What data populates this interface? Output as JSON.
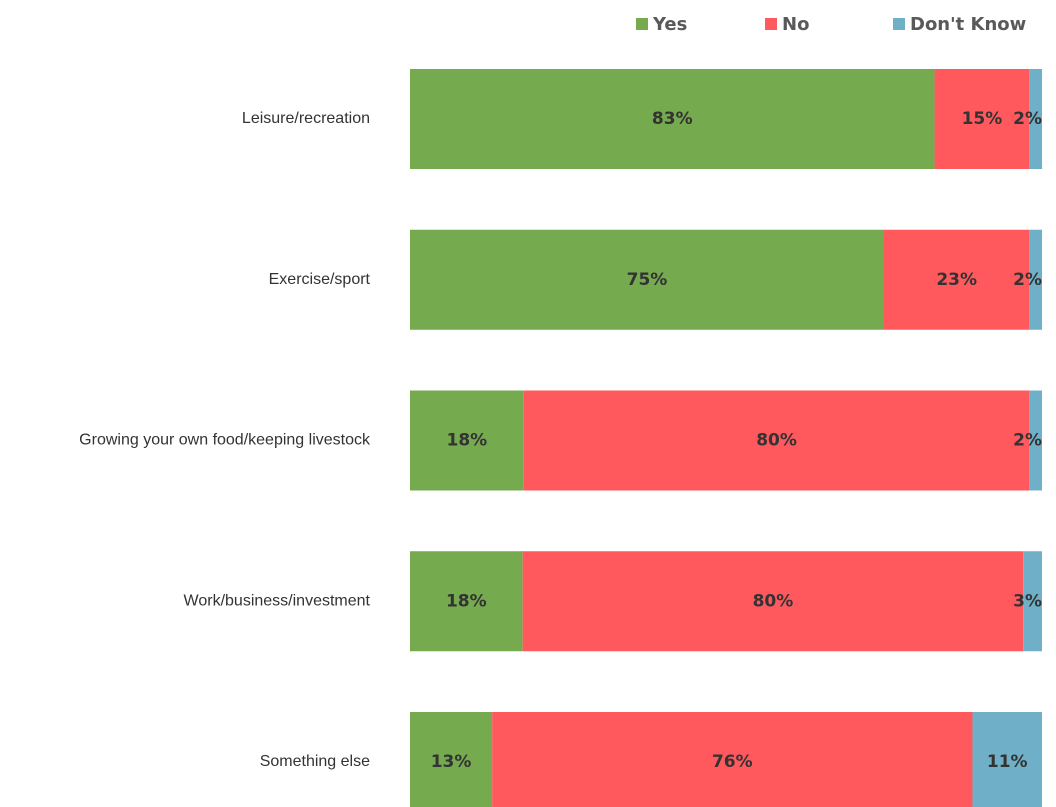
{
  "chart_data": {
    "type": "stacked_bar_horizontal",
    "legend": "top",
    "categories": [
      "Leisure/recreation",
      "Exercise/sport",
      "Growing your own food/keeping livestock",
      "Work/business/investment",
      "Something else"
    ],
    "series": [
      {
        "name": "Yes",
        "color": "#75aa4f",
        "values": [
          83,
          75,
          18,
          18,
          13
        ],
        "value_labels": [
          "83%",
          "75%",
          "18%",
          "18%",
          "13%"
        ]
      },
      {
        "name": "No",
        "color": "#ff585d",
        "values": [
          15,
          23,
          80,
          80,
          76
        ],
        "value_labels": [
          "15%",
          "23%",
          "80%",
          "80%",
          "76%"
        ]
      },
      {
        "name": "Don't Know",
        "color": "#6fb0c8",
        "values": [
          2,
          2,
          2,
          3,
          11
        ],
        "value_labels": [
          "2%",
          "2%",
          "2%",
          "3%",
          "11%"
        ]
      }
    ]
  }
}
